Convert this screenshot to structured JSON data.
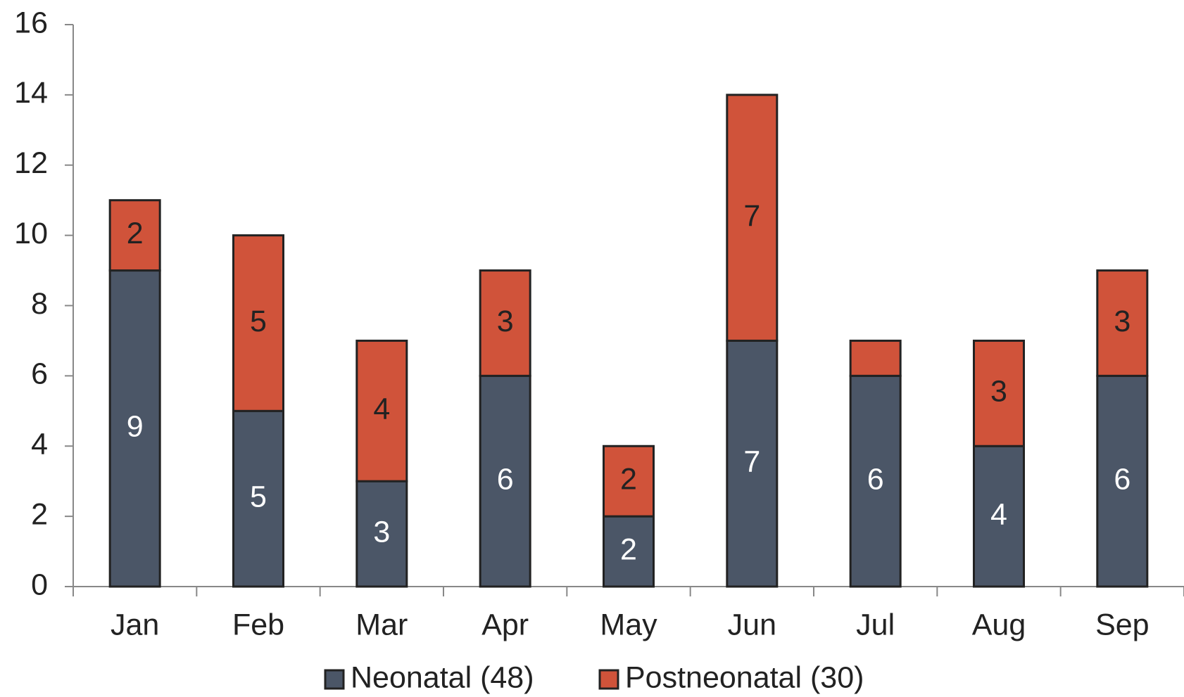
{
  "chart_data": {
    "type": "stacked_bar",
    "categories": [
      "Jan",
      "Feb",
      "Mar",
      "Apr",
      "May",
      "Jun",
      "Jul",
      "Aug",
      "Sep"
    ],
    "series": [
      {
        "name": "Neonatal (48)",
        "color": "#4b5667",
        "values": [
          9,
          5,
          3,
          6,
          2,
          7,
          6,
          4,
          6
        ]
      },
      {
        "name": "Postneonatal (30)",
        "color": "#d0533a",
        "values": [
          2,
          5,
          4,
          3,
          2,
          7,
          1,
          3,
          3
        ],
        "value_labels": [
          "2",
          "5",
          "4",
          "3",
          "2",
          "7",
          null,
          "3",
          "3"
        ]
      }
    ],
    "ylim": [
      0,
      16
    ],
    "yticks": [
      0,
      2,
      4,
      6,
      8,
      10,
      12,
      14,
      16
    ],
    "grid": false,
    "legend": "bottom"
  }
}
